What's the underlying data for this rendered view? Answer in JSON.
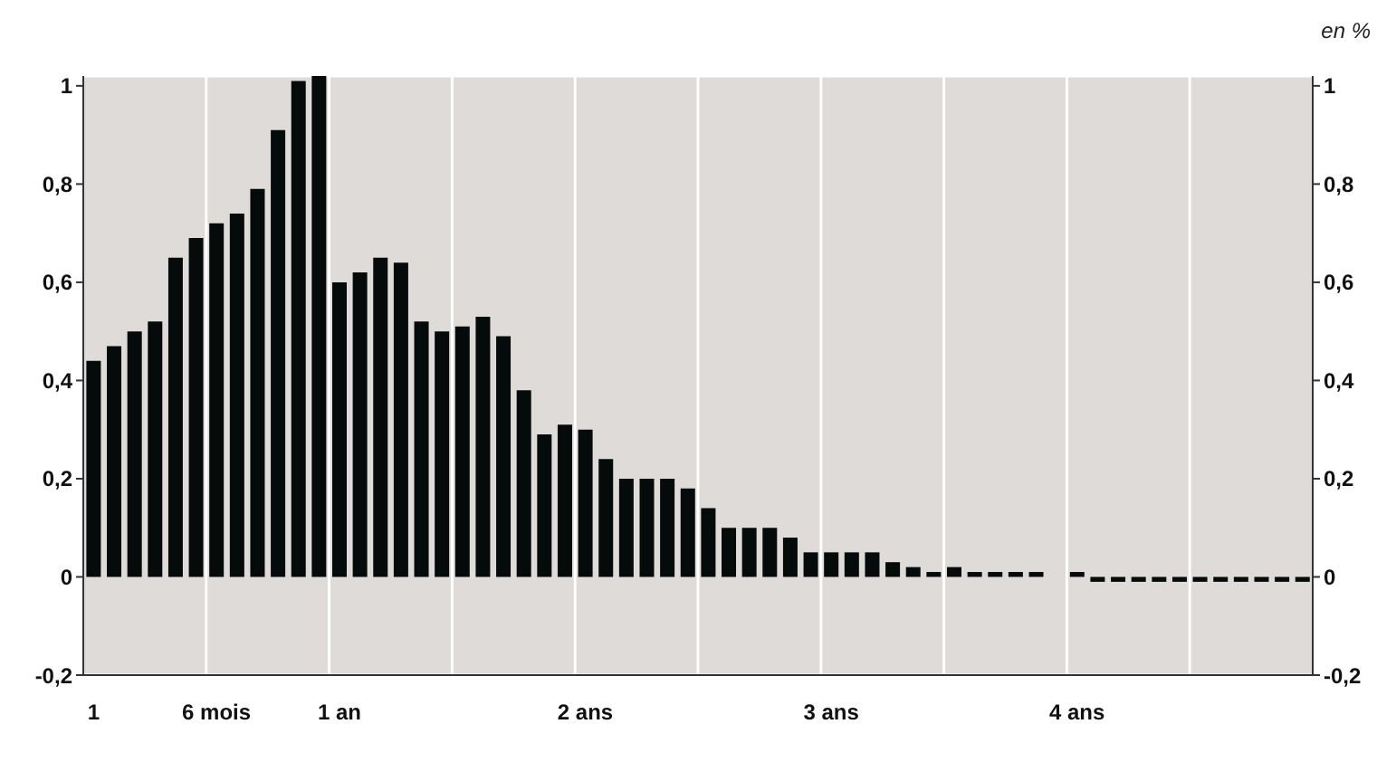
{
  "chart_data": {
    "type": "bar",
    "categories": [
      "1",
      null,
      null,
      null,
      null,
      null,
      "6 mois",
      null,
      null,
      null,
      null,
      null,
      "1 an",
      null,
      null,
      null,
      null,
      null,
      null,
      null,
      null,
      null,
      null,
      null,
      "2 ans",
      null,
      null,
      null,
      null,
      null,
      null,
      null,
      null,
      null,
      null,
      null,
      "3 ans",
      null,
      null,
      null,
      null,
      null,
      null,
      null,
      null,
      null,
      null,
      null,
      "4 ans",
      null,
      null,
      null,
      null,
      null,
      null,
      null,
      null,
      null,
      null,
      null
    ],
    "values": [
      0.44,
      0.47,
      0.5,
      0.52,
      0.65,
      0.69,
      0.72,
      0.74,
      0.79,
      0.91,
      1.01,
      1.02,
      0.6,
      0.62,
      0.65,
      0.64,
      0.52,
      0.5,
      0.51,
      0.53,
      0.49,
      0.38,
      0.29,
      0.31,
      0.3,
      0.24,
      0.2,
      0.2,
      0.2,
      0.18,
      0.14,
      0.1,
      0.1,
      0.1,
      0.08,
      0.05,
      0.05,
      0.05,
      0.05,
      0.03,
      0.02,
      0.01,
      0.02,
      0.01,
      0.01,
      0.01,
      0.01,
      0.0,
      0.01,
      -0.01,
      -0.01,
      -0.01,
      -0.01,
      -0.01,
      -0.01,
      -0.01,
      -0.01,
      -0.01,
      -0.01,
      -0.01
    ],
    "color": "#050a0a",
    "ylim": [
      -0.2,
      1.02
    ],
    "yticks": [
      {
        "value": -0.2,
        "label": "-0,2"
      },
      0,
      {
        "value": 0.2,
        "label": "0,2"
      },
      {
        "value": 0.4,
        "label": "0,4"
      },
      {
        "value": 0.6,
        "label": "0,6"
      },
      {
        "value": 0.8,
        "label": "0,8"
      },
      1
    ],
    "y2lim": [
      -0.2,
      1.02
    ],
    "y2ticks": [
      {
        "value": -0.2,
        "label": "-0,2"
      },
      0,
      {
        "value": 0.2,
        "label": "0,2"
      },
      {
        "value": 0.4,
        "label": "0,4"
      },
      {
        "value": 0.6,
        "label": "0,6"
      },
      {
        "value": 0.8,
        "label": "0,8"
      },
      1
    ],
    "annotations": [
      "en %"
    ],
    "grid": true,
    "legend": false
  }
}
